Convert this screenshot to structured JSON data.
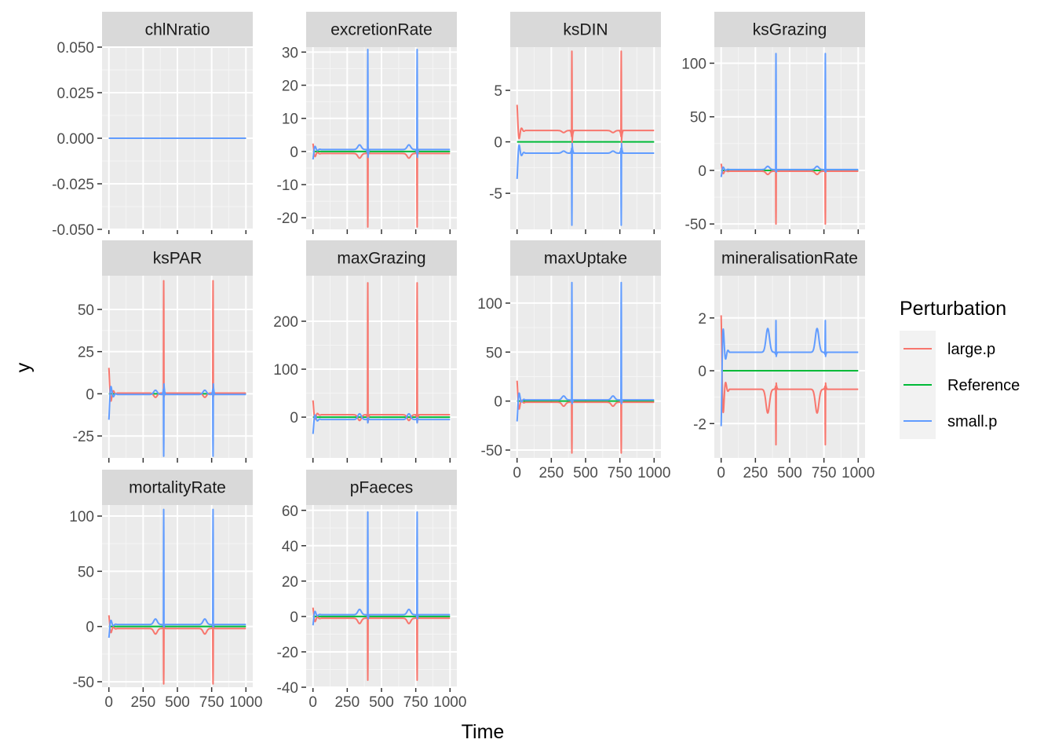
{
  "chart_data": {
    "type": "line",
    "layout": "facet_wrap",
    "xlabel": "Time",
    "ylabel": "y",
    "xlim": [
      0,
      1000
    ],
    "x_ticks": [
      0,
      250,
      500,
      750,
      1000
    ],
    "x_tick_labels": [
      "0",
      "250",
      "500",
      "750",
      "1000"
    ],
    "legend": {
      "title": "Perturbation",
      "position": "right",
      "entries": [
        {
          "name": "large.p",
          "color": "#F8766D"
        },
        {
          "name": "Reference",
          "color": "#00BA38"
        },
        {
          "name": "small.p",
          "color": "#619CFF"
        }
      ]
    },
    "panels": [
      {
        "name": "chlNratio",
        "ylim": [
          -0.05,
          0.05
        ],
        "y_ticks": [
          -0.05,
          -0.025,
          0,
          0.025,
          0.05
        ],
        "y_tick_labels": [
          "-0.050",
          "-0.025",
          "0.000",
          "0.025",
          "0.050"
        ],
        "show_x_axis": false,
        "large_base": 0,
        "small_base": 0,
        "large_spike": [
          0,
          0
        ],
        "small_spike": [
          0,
          0
        ],
        "bump": 0,
        "start_amp": 0
      },
      {
        "name": "excretionRate",
        "ylim": [
          -23.5,
          31.5
        ],
        "y_ticks": [
          -20,
          -10,
          0,
          10,
          20,
          30
        ],
        "y_tick_labels": [
          "-20",
          "-10",
          "0",
          "10",
          "20",
          "30"
        ],
        "show_x_axis": false,
        "large_base": -0.6,
        "small_base": 0.6,
        "large_spike": [
          -22.8,
          2.5
        ],
        "small_spike": [
          30.8,
          -3
        ],
        "bump": 1.4,
        "start_amp": 3
      },
      {
        "name": "ksDIN",
        "ylim": [
          -8.5,
          9.2
        ],
        "y_ticks": [
          -5,
          0,
          5
        ],
        "y_tick_labels": [
          "-5",
          "0",
          "5"
        ],
        "show_x_axis": false,
        "large_base": 1.1,
        "small_base": -1.1,
        "large_spike": [
          8.8,
          -1.5
        ],
        "small_spike": [
          -8.1,
          1.2
        ],
        "bump": 0.2,
        "start_amp": 2.5
      },
      {
        "name": "ksGrazing",
        "ylim": [
          -55,
          115
        ],
        "y_ticks": [
          -50,
          0,
          50,
          100
        ],
        "y_tick_labels": [
          "-50",
          "0",
          "50",
          "100"
        ],
        "show_x_axis": false,
        "large_base": -0.8,
        "small_base": 0.8,
        "large_spike": [
          -50,
          3
        ],
        "small_spike": [
          109,
          -3
        ],
        "bump": 3,
        "start_amp": 7
      },
      {
        "name": "ksPAR",
        "ylim": [
          -38,
          70
        ],
        "y_ticks": [
          -25,
          0,
          25,
          50
        ],
        "y_tick_labels": [
          "-25",
          "0",
          "25",
          "50"
        ],
        "show_x_axis": false,
        "large_base": 0.4,
        "small_base": -0.4,
        "large_spike": [
          67,
          -3
        ],
        "small_spike": [
          -37,
          8
        ],
        "bump": 2.5,
        "start_amp": 15
      },
      {
        "name": "maxGrazing",
        "ylim": [
          -85,
          295
        ],
        "y_ticks": [
          0,
          100,
          200
        ],
        "y_tick_labels": [
          "0",
          "100",
          "200"
        ],
        "show_x_axis": false,
        "large_base": 5,
        "small_base": -5,
        "large_spike": [
          280,
          -20
        ],
        "small_spike": [
          -12,
          5
        ],
        "bump": 12,
        "start_amp": 30
      },
      {
        "name": "maxUptake",
        "ylim": [
          -58,
          128
        ],
        "y_ticks": [
          -50,
          0,
          50,
          100
        ],
        "y_tick_labels": [
          "-50",
          "0",
          "50",
          "100"
        ],
        "show_x_axis": true,
        "large_base": -1.2,
        "small_base": 1.2,
        "large_spike": [
          -53,
          3
        ],
        "small_spike": [
          121,
          -5
        ],
        "bump": 4,
        "start_amp": 22
      },
      {
        "name": "mineralisationRate",
        "ylim": [
          -3.3,
          3.6
        ],
        "y_ticks": [
          -2,
          0,
          2
        ],
        "y_tick_labels": [
          "-2",
          "0",
          "2"
        ],
        "show_x_axis": true,
        "large_base": -0.7,
        "small_base": 0.7,
        "large_spike": [
          -2.8,
          0.3
        ],
        "small_spike": [
          1.9,
          -0.2
        ],
        "bump": 0.9,
        "start_amp": 2.8
      },
      {
        "name": "mortalityRate",
        "ylim": [
          -55,
          110
        ],
        "y_ticks": [
          -50,
          0,
          50,
          100
        ],
        "y_tick_labels": [
          "-50",
          "0",
          "50",
          "100"
        ],
        "show_x_axis": true,
        "large_base": -1.8,
        "small_base": 1.8,
        "large_spike": [
          -52,
          3
        ],
        "small_spike": [
          106,
          -3
        ],
        "bump": 5,
        "start_amp": 12
      },
      {
        "name": "pFaeces",
        "ylim": [
          -40,
          63
        ],
        "y_ticks": [
          -40,
          -20,
          0,
          20,
          40,
          60
        ],
        "y_tick_labels": [
          "-40",
          "-20",
          "0",
          "20",
          "40",
          "60"
        ],
        "show_x_axis": true,
        "large_base": -1,
        "small_base": 1,
        "large_spike": [
          -36,
          2
        ],
        "small_spike": [
          59,
          -3
        ],
        "bump": 3,
        "start_amp": 6
      }
    ]
  }
}
